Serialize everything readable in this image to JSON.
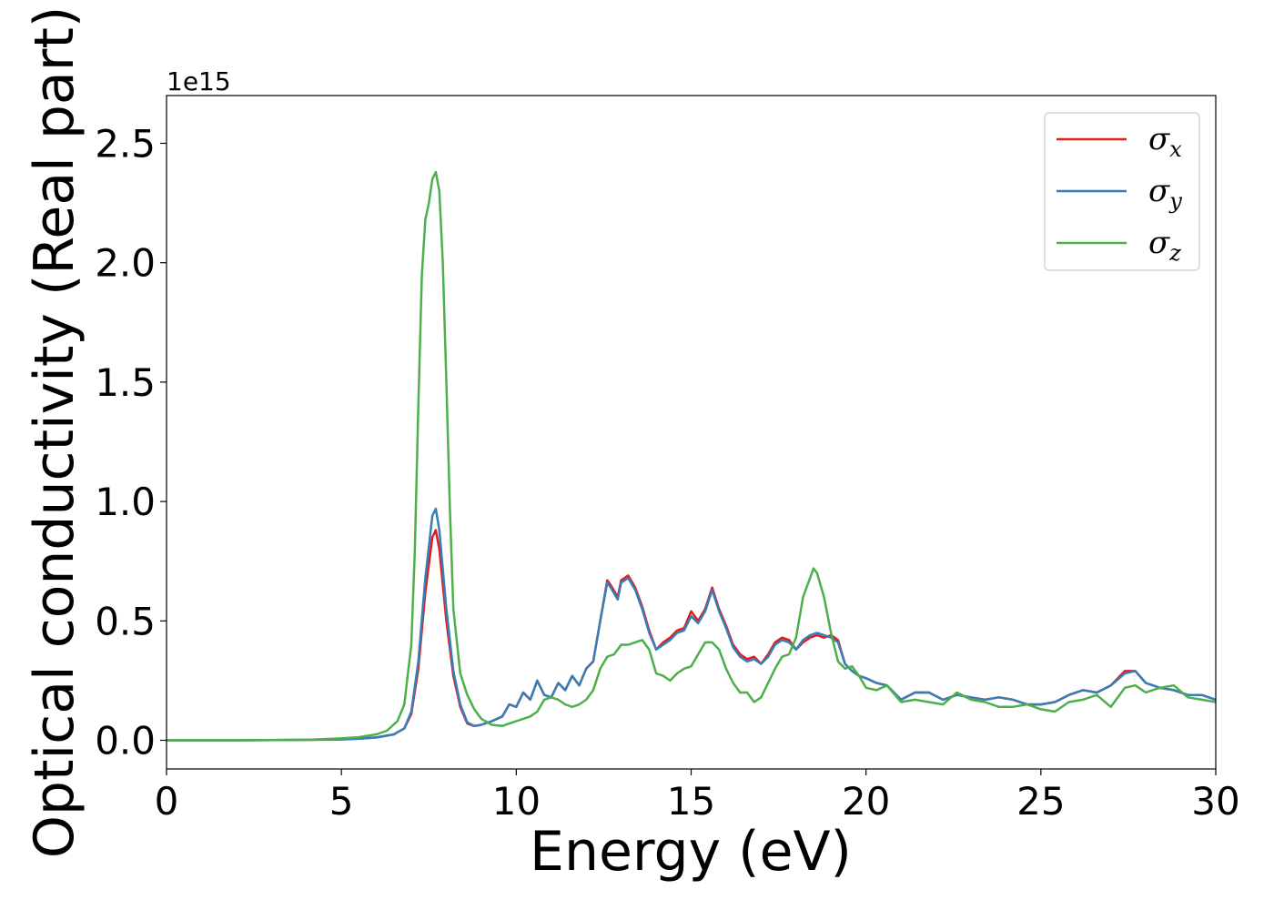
{
  "chart_data": {
    "type": "line",
    "xlabel": "Energy (eV)",
    "ylabel": "Optical conductivity (Real part)",
    "offset_text": "1e15",
    "xlim": [
      0,
      30
    ],
    "ylim": [
      -0.12,
      2.7
    ],
    "xticks": [
      0,
      5,
      10,
      15,
      20,
      25,
      30
    ],
    "xtick_labels": [
      "0",
      "5",
      "10",
      "15",
      "20",
      "25",
      "30"
    ],
    "yticks": [
      0.0,
      0.5,
      1.0,
      1.5,
      2.0,
      2.5
    ],
    "ytick_labels": [
      "0.0",
      "0.5",
      "1.0",
      "1.5",
      "2.0",
      "2.5"
    ],
    "grid": false,
    "legend_position": "top-right",
    "series": [
      {
        "name": "σx",
        "label_base": "σ",
        "label_sub": "x",
        "color": "#e41a1c",
        "x": [
          0,
          2,
          4,
          5,
          5.5,
          6,
          6.5,
          6.8,
          7.0,
          7.2,
          7.4,
          7.6,
          7.7,
          7.8,
          8.0,
          8.2,
          8.4,
          8.6,
          8.8,
          9.0,
          9.3,
          9.6,
          9.8,
          10.0,
          10.2,
          10.4,
          10.6,
          10.8,
          11.0,
          11.2,
          11.4,
          11.6,
          11.8,
          12.0,
          12.2,
          12.4,
          12.6,
          12.7,
          12.9,
          13.0,
          13.2,
          13.4,
          13.6,
          13.8,
          14.0,
          14.2,
          14.4,
          14.6,
          14.8,
          15.0,
          15.2,
          15.4,
          15.6,
          15.8,
          16.0,
          16.2,
          16.4,
          16.6,
          16.8,
          17.0,
          17.2,
          17.4,
          17.6,
          17.8,
          18.0,
          18.2,
          18.4,
          18.6,
          18.8,
          19.0,
          19.2,
          19.4,
          19.6,
          19.8,
          20.0,
          20.3,
          20.6,
          21.0,
          21.4,
          21.8,
          22.2,
          22.6,
          23.0,
          23.4,
          23.8,
          24.2,
          24.6,
          25.0,
          25.4,
          25.8,
          26.2,
          26.6,
          27.0,
          27.4,
          27.7,
          28.0,
          28.4,
          28.8,
          29.2,
          29.6,
          30.0
        ],
        "values": [
          0,
          0,
          0.002,
          0.004,
          0.007,
          0.012,
          0.025,
          0.05,
          0.11,
          0.3,
          0.62,
          0.85,
          0.88,
          0.8,
          0.5,
          0.27,
          0.14,
          0.07,
          0.06,
          0.065,
          0.08,
          0.1,
          0.15,
          0.14,
          0.2,
          0.17,
          0.25,
          0.19,
          0.18,
          0.24,
          0.21,
          0.27,
          0.23,
          0.3,
          0.33,
          0.5,
          0.67,
          0.65,
          0.6,
          0.67,
          0.69,
          0.64,
          0.56,
          0.46,
          0.38,
          0.41,
          0.43,
          0.46,
          0.47,
          0.54,
          0.5,
          0.55,
          0.64,
          0.55,
          0.48,
          0.4,
          0.36,
          0.34,
          0.35,
          0.32,
          0.36,
          0.41,
          0.43,
          0.42,
          0.38,
          0.41,
          0.43,
          0.44,
          0.43,
          0.44,
          0.42,
          0.32,
          0.29,
          0.27,
          0.26,
          0.24,
          0.23,
          0.17,
          0.2,
          0.2,
          0.17,
          0.19,
          0.18,
          0.17,
          0.18,
          0.17,
          0.15,
          0.15,
          0.16,
          0.19,
          0.21,
          0.2,
          0.23,
          0.29,
          0.29,
          0.24,
          0.22,
          0.21,
          0.19,
          0.19,
          0.17
        ]
      },
      {
        "name": "σy",
        "label_base": "σ",
        "label_sub": "y",
        "color": "#377eb8",
        "x": [
          0,
          2,
          4,
          5,
          5.5,
          6,
          6.5,
          6.8,
          7.0,
          7.2,
          7.4,
          7.6,
          7.7,
          7.8,
          8.0,
          8.2,
          8.4,
          8.6,
          8.8,
          9.0,
          9.3,
          9.6,
          9.8,
          10.0,
          10.2,
          10.4,
          10.6,
          10.8,
          11.0,
          11.2,
          11.4,
          11.6,
          11.8,
          12.0,
          12.2,
          12.4,
          12.6,
          12.7,
          12.9,
          13.0,
          13.2,
          13.4,
          13.6,
          13.8,
          14.0,
          14.2,
          14.4,
          14.6,
          14.8,
          15.0,
          15.2,
          15.4,
          15.6,
          15.8,
          16.0,
          16.2,
          16.4,
          16.6,
          16.8,
          17.0,
          17.2,
          17.4,
          17.6,
          17.8,
          18.0,
          18.2,
          18.4,
          18.6,
          18.8,
          19.0,
          19.2,
          19.4,
          19.6,
          19.8,
          20.0,
          20.3,
          20.6,
          21.0,
          21.4,
          21.8,
          22.2,
          22.6,
          23.0,
          23.4,
          23.8,
          24.2,
          24.6,
          25.0,
          25.4,
          25.8,
          26.2,
          26.6,
          27.0,
          27.4,
          27.7,
          28.0,
          28.4,
          28.8,
          29.2,
          29.6,
          30.0
        ],
        "values": [
          0,
          0,
          0.002,
          0.004,
          0.007,
          0.012,
          0.025,
          0.05,
          0.12,
          0.33,
          0.68,
          0.94,
          0.97,
          0.88,
          0.55,
          0.29,
          0.15,
          0.075,
          0.06,
          0.065,
          0.08,
          0.1,
          0.15,
          0.14,
          0.2,
          0.17,
          0.25,
          0.19,
          0.18,
          0.24,
          0.21,
          0.27,
          0.23,
          0.3,
          0.33,
          0.5,
          0.66,
          0.64,
          0.59,
          0.66,
          0.68,
          0.63,
          0.55,
          0.45,
          0.38,
          0.4,
          0.42,
          0.45,
          0.46,
          0.52,
          0.49,
          0.54,
          0.63,
          0.54,
          0.47,
          0.39,
          0.35,
          0.33,
          0.34,
          0.32,
          0.35,
          0.4,
          0.42,
          0.41,
          0.38,
          0.42,
          0.44,
          0.45,
          0.44,
          0.43,
          0.41,
          0.32,
          0.29,
          0.27,
          0.26,
          0.24,
          0.23,
          0.17,
          0.2,
          0.2,
          0.17,
          0.19,
          0.18,
          0.17,
          0.18,
          0.17,
          0.15,
          0.15,
          0.16,
          0.19,
          0.21,
          0.2,
          0.23,
          0.28,
          0.29,
          0.24,
          0.22,
          0.21,
          0.19,
          0.19,
          0.17
        ]
      },
      {
        "name": "σz",
        "label_base": "σ",
        "label_sub": "z",
        "color": "#4daf4a",
        "x": [
          0,
          2,
          4,
          5,
          5.5,
          6,
          6.3,
          6.6,
          6.8,
          7.0,
          7.1,
          7.2,
          7.3,
          7.4,
          7.5,
          7.6,
          7.7,
          7.8,
          7.9,
          8.0,
          8.1,
          8.2,
          8.4,
          8.6,
          8.8,
          9.0,
          9.3,
          9.6,
          9.8,
          10.0,
          10.2,
          10.4,
          10.6,
          10.8,
          11.0,
          11.2,
          11.4,
          11.6,
          11.8,
          12.0,
          12.2,
          12.4,
          12.6,
          12.8,
          13.0,
          13.2,
          13.4,
          13.6,
          13.8,
          14.0,
          14.2,
          14.4,
          14.6,
          14.8,
          15.0,
          15.2,
          15.4,
          15.6,
          15.8,
          16.0,
          16.2,
          16.4,
          16.6,
          16.8,
          17.0,
          17.2,
          17.4,
          17.6,
          17.8,
          18.0,
          18.2,
          18.4,
          18.5,
          18.6,
          18.8,
          19.0,
          19.2,
          19.4,
          19.6,
          19.8,
          20.0,
          20.3,
          20.6,
          21.0,
          21.4,
          21.8,
          22.2,
          22.6,
          23.0,
          23.4,
          23.8,
          24.2,
          24.6,
          25.0,
          25.4,
          25.8,
          26.2,
          26.6,
          27.0,
          27.4,
          27.7,
          28.0,
          28.4,
          28.8,
          29.2,
          29.6,
          30.0
        ],
        "values": [
          0,
          0,
          0.002,
          0.008,
          0.013,
          0.025,
          0.04,
          0.08,
          0.15,
          0.4,
          0.8,
          1.4,
          1.95,
          2.18,
          2.25,
          2.35,
          2.38,
          2.3,
          2.0,
          1.5,
          0.98,
          0.55,
          0.28,
          0.19,
          0.13,
          0.09,
          0.065,
          0.06,
          0.07,
          0.08,
          0.09,
          0.1,
          0.12,
          0.17,
          0.18,
          0.17,
          0.15,
          0.14,
          0.15,
          0.17,
          0.21,
          0.3,
          0.35,
          0.36,
          0.4,
          0.4,
          0.41,
          0.42,
          0.38,
          0.28,
          0.27,
          0.25,
          0.28,
          0.3,
          0.31,
          0.36,
          0.41,
          0.41,
          0.38,
          0.3,
          0.24,
          0.2,
          0.2,
          0.16,
          0.18,
          0.24,
          0.3,
          0.35,
          0.36,
          0.43,
          0.6,
          0.68,
          0.72,
          0.7,
          0.6,
          0.45,
          0.33,
          0.3,
          0.31,
          0.27,
          0.22,
          0.21,
          0.23,
          0.16,
          0.17,
          0.16,
          0.15,
          0.2,
          0.17,
          0.16,
          0.14,
          0.14,
          0.15,
          0.13,
          0.12,
          0.16,
          0.17,
          0.19,
          0.14,
          0.22,
          0.23,
          0.2,
          0.22,
          0.23,
          0.18,
          0.17,
          0.16
        ]
      }
    ]
  }
}
